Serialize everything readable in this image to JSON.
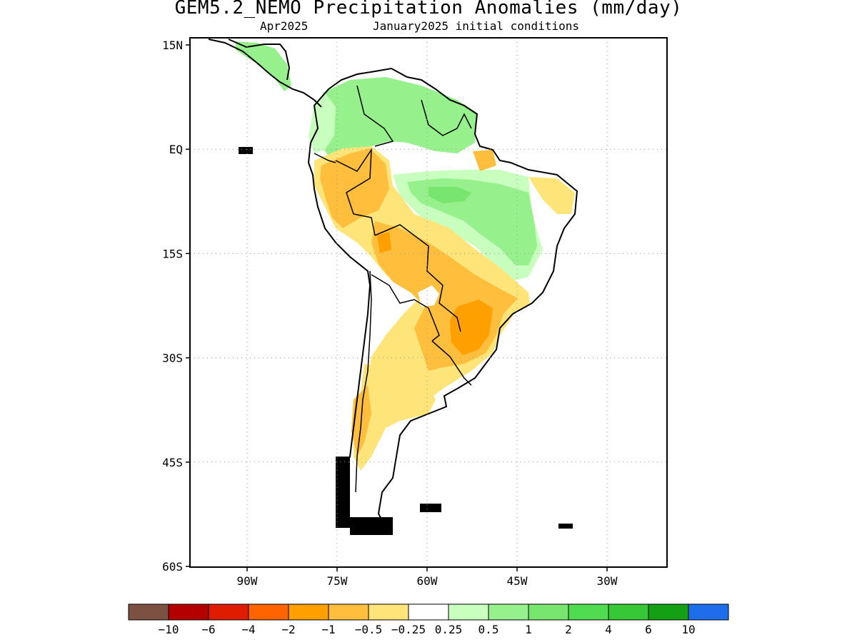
{
  "title": "GEM5.2_NEMO Precipitation Anomalies (mm/day)",
  "subtitle_left": "Apr2025",
  "subtitle_right": "January2025 initial conditions",
  "lat_labels": [
    "15N",
    "EQ",
    "15S",
    "30S",
    "45S",
    "60S"
  ],
  "lon_labels": [
    "90W",
    "75W",
    "60W",
    "45W",
    "30W"
  ],
  "colorbar": {
    "colors": [
      "#7b5142",
      "#b40000",
      "#e01c00",
      "#ff6400",
      "#ffa000",
      "#ffbe3c",
      "#ffe47a",
      "#ffffff",
      "#c8ffbe",
      "#96f08c",
      "#78e66e",
      "#50dc50",
      "#37c837",
      "#14a014",
      "#1e6eeb"
    ],
    "labels": [
      "−10",
      "−6",
      "−4",
      "−2",
      "−1",
      "−0.5",
      "−0.25",
      "0.25",
      "0.5",
      "1",
      "2",
      "4",
      "6",
      "10"
    ]
  },
  "map": {
    "lat_range": [
      -60,
      15
    ],
    "lon_range": [
      -100,
      -20
    ],
    "grid": true
  }
}
